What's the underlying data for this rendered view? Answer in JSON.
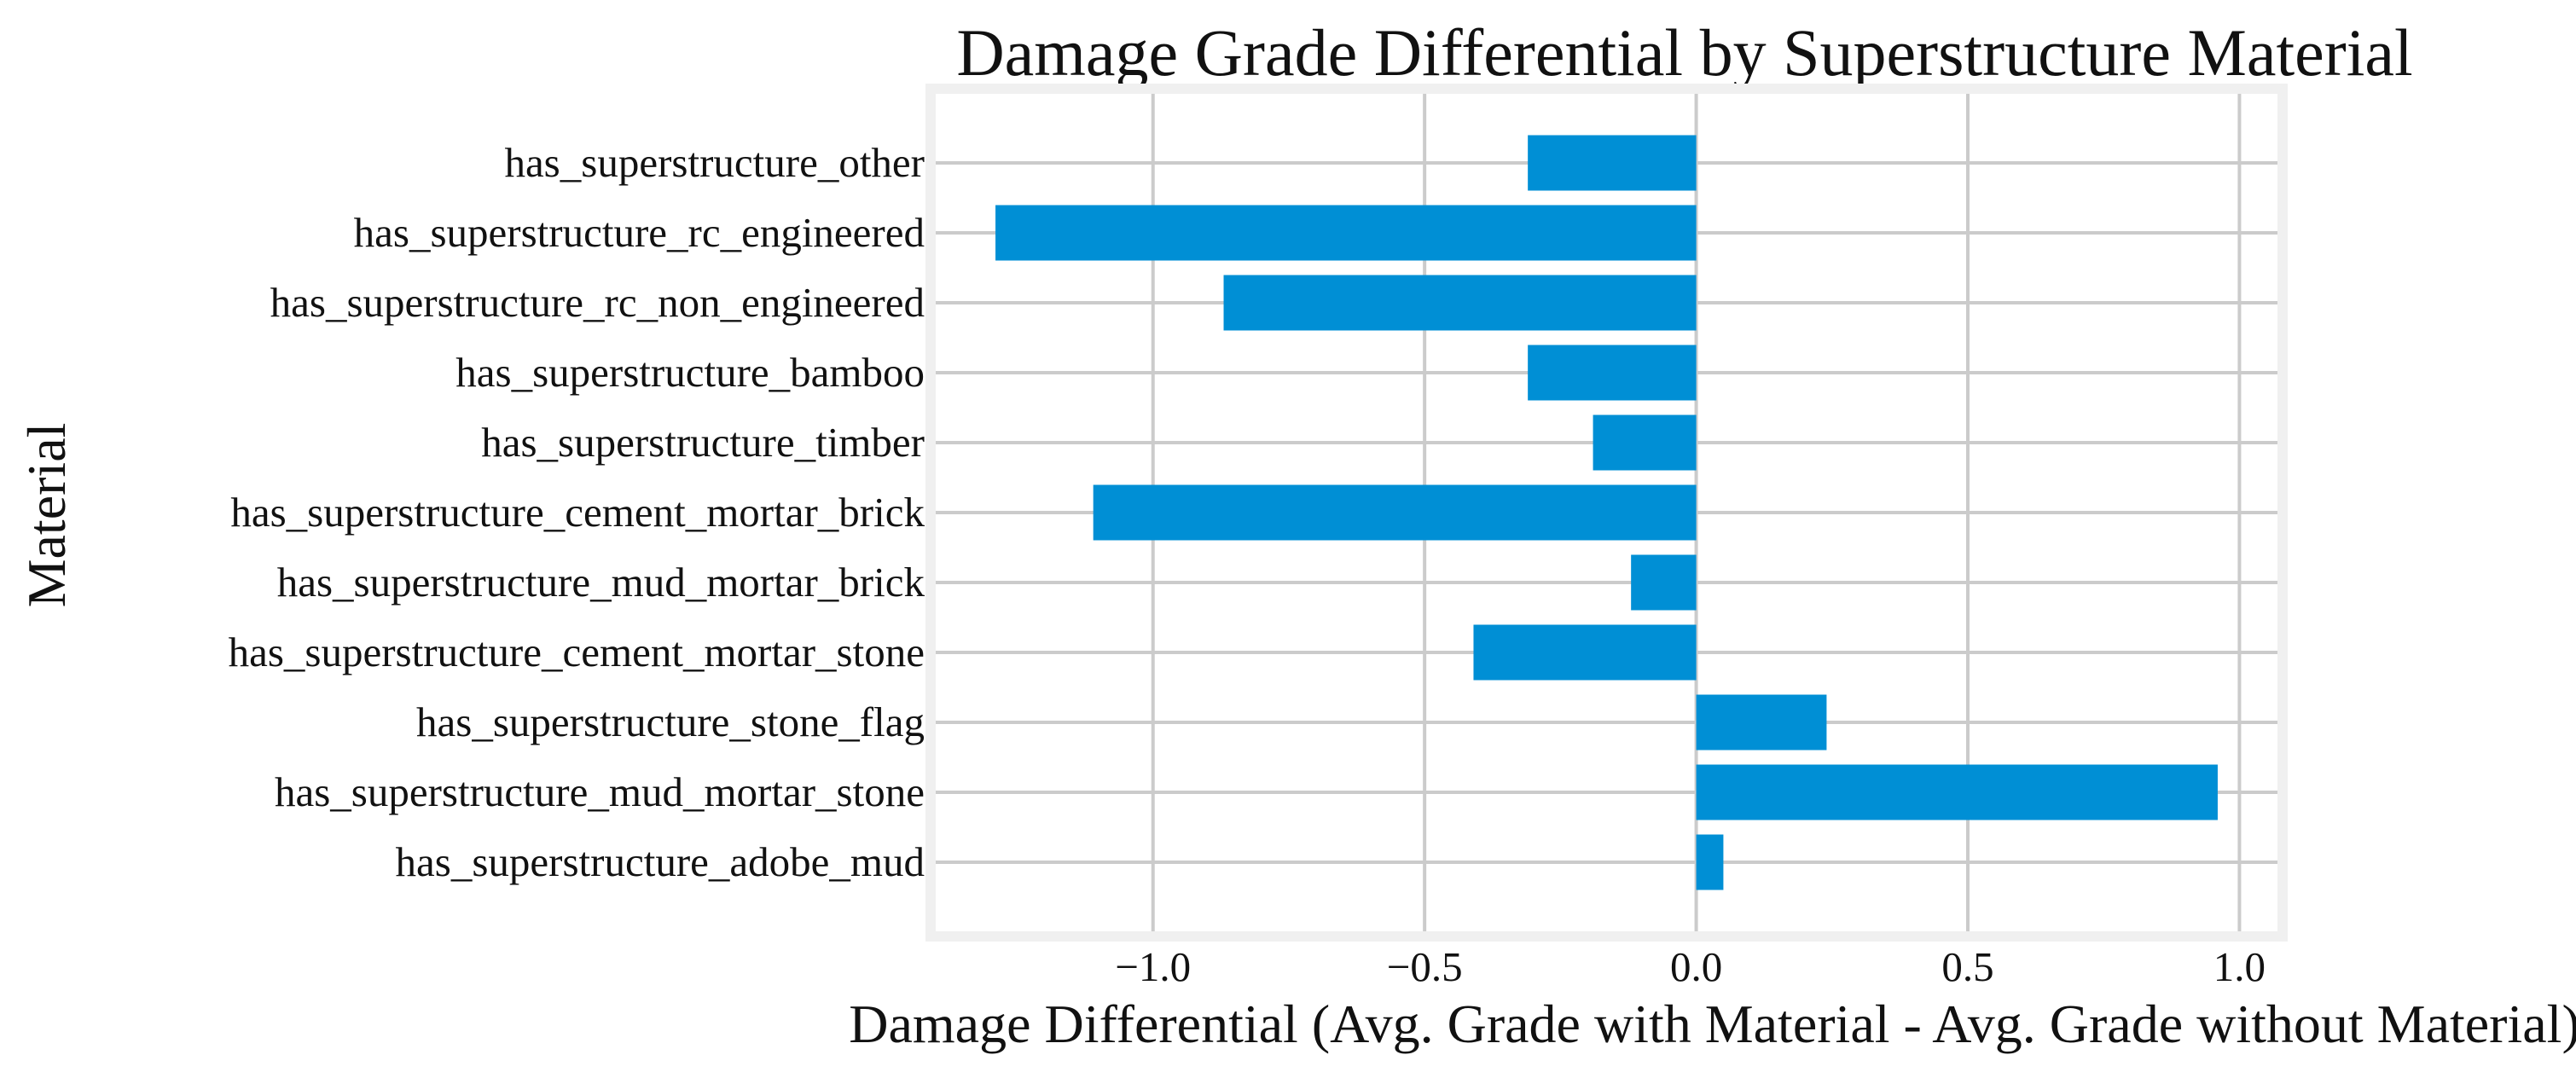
{
  "chart_data": {
    "type": "bar",
    "orientation": "horizontal",
    "title": "Damage Grade Differential by Superstructure Material",
    "xlabel": "Damage Differential (Avg. Grade with Material - Avg. Grade without Material)",
    "ylabel": "Material",
    "xlim": [
      -1.4,
      1.07
    ],
    "xticks": [
      -1.0,
      -0.5,
      0.0,
      0.5,
      1.0
    ],
    "xtick_labels": [
      "−1.0",
      "−0.5",
      "0.0",
      "0.5",
      "1.0"
    ],
    "grid": true,
    "bar_color": "#008fd5",
    "grid_color": "#cbcbcb",
    "frame_color": "#f0f0f0",
    "categories": [
      "has_superstructure_other",
      "has_superstructure_rc_engineered",
      "has_superstructure_rc_non_engineered",
      "has_superstructure_bamboo",
      "has_superstructure_timber",
      "has_superstructure_cement_mortar_brick",
      "has_superstructure_mud_mortar_brick",
      "has_superstructure_cement_mortar_stone",
      "has_superstructure_stone_flag",
      "has_superstructure_mud_mortar_stone",
      "has_superstructure_adobe_mud"
    ],
    "values": [
      -0.31,
      -1.29,
      -0.87,
      -0.31,
      -0.19,
      -1.11,
      -0.12,
      -0.41,
      0.24,
      0.96,
      0.05
    ]
  }
}
